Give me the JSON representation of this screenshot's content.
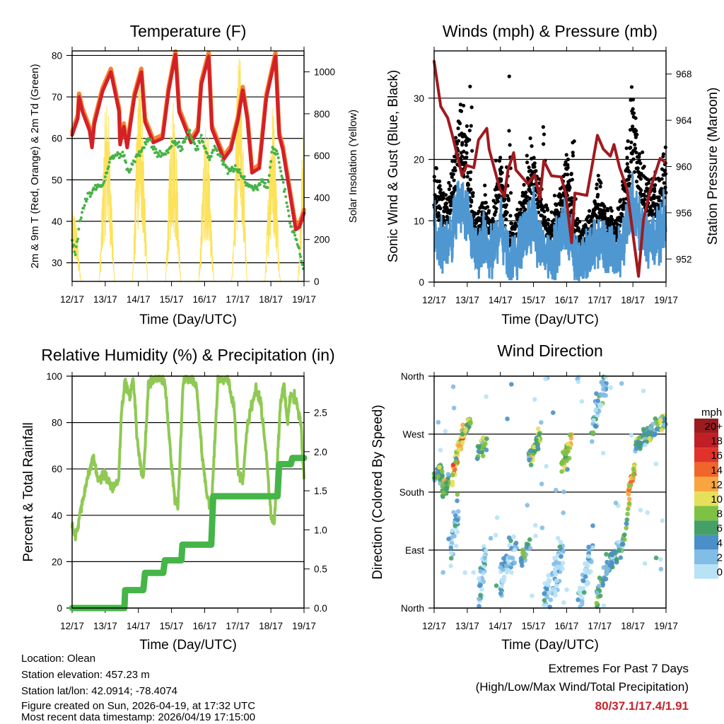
{
  "colors": {
    "temp_red": "#d42027",
    "temp_orange": "#f58231",
    "dewpoint": "#47b347",
    "solar": "#fde25a",
    "wind": "#4f97d1",
    "gust": "#000000",
    "pressure": "#a01a1f",
    "rh": "#8fc953",
    "precip": "#46b549",
    "extremes": "#c9222b"
  },
  "chart_data": [
    {
      "type": "line",
      "title": "Temperature (F)",
      "xlabel": "Time (Day/UTC)",
      "ylabel": "2m & 9m T (Red, Orange) & 2m Td (Green)",
      "ylabel_right": "Solar Insolation (Yellow)",
      "x_ticks": [
        "12/17",
        "13/17",
        "14/17",
        "15/17",
        "16/17",
        "17/17",
        "18/17",
        "19/17"
      ],
      "ylim": [
        25.5,
        81.1
      ],
      "y_ticks": [
        30,
        40,
        50,
        60,
        70,
        80
      ],
      "y_tick_labels": [
        "30",
        "40",
        "50",
        "60",
        "70",
        "80"
      ],
      "ylim_right": [
        0,
        1100
      ],
      "y_ticks_right": [
        0,
        200,
        400,
        600,
        800,
        1000
      ],
      "y_tick_labels_right": [
        "0",
        "200",
        "400",
        "600",
        "800",
        "1000"
      ],
      "series": [
        {
          "name": "2m T",
          "x": [
            0,
            0.17,
            0.21,
            0.31,
            0.53,
            0.6,
            0.67,
            0.92,
            1.17,
            1.42,
            1.45,
            1.56,
            1.66,
            1.88,
            2.09,
            2.2,
            2.45,
            2.73,
            2.91,
            3.12,
            3.23,
            3.59,
            3.8,
            3.9,
            4.12,
            4.22,
            4.58,
            4.79,
            5.01,
            5.15,
            5.29,
            5.43,
            5.65,
            5.86,
            6.14,
            6.25,
            6.36,
            6.75,
            6.86,
            7.0
          ],
          "y": [
            60.8,
            64.8,
            70,
            66.5,
            61.8,
            57.8,
            63.5,
            71.4,
            76,
            66.4,
            58.5,
            62.8,
            57.8,
            70,
            76,
            64,
            59,
            60,
            71.4,
            80.2,
            66.4,
            59,
            61.8,
            73,
            79.8,
            62.3,
            55,
            57.3,
            64.6,
            71.6,
            64.6,
            51.7,
            52.8,
            69.7,
            79.8,
            60.6,
            57.3,
            38,
            38.6,
            42
          ]
        },
        {
          "name": "9m T",
          "offset": 0.8
        },
        {
          "name": "2m Td",
          "x": [
            0,
            0.1,
            0.25,
            0.4,
            0.7,
            0.95,
            1.15,
            1.35,
            1.55,
            1.7,
            1.9,
            2.1,
            2.3,
            2.5,
            2.7,
            2.9,
            3.05,
            3.3,
            3.55,
            3.75,
            3.9,
            4.15,
            4.3,
            4.5,
            4.7,
            4.9,
            5.1,
            5.35,
            5.55,
            5.75,
            5.9,
            6.05,
            6.2,
            6.4,
            6.6,
            6.8,
            6.95,
            7.0
          ],
          "y": [
            35,
            32,
            41,
            45,
            48,
            49,
            55,
            56,
            56,
            52,
            55,
            57,
            60,
            57,
            56,
            57,
            59,
            58,
            62,
            57,
            60,
            55,
            58,
            55,
            52,
            53,
            51,
            48.5,
            48,
            50,
            48,
            58,
            56,
            48,
            39,
            35,
            30,
            26
          ]
        },
        {
          "name": "Solar",
          "daily_peak_day": [
            0,
            1,
            2,
            3,
            4,
            5,
            6,
            7
          ],
          "daily_peak": [
            350,
            890,
            1025,
            910,
            780,
            1100,
            870,
            940
          ]
        }
      ]
    },
    {
      "type": "scatter",
      "title": "Winds (mph) & Pressure (mb)",
      "xlabel": "Time (Day/UTC)",
      "ylabel": "Sonic Wind & Gust (Blue, Black)",
      "ylabel_right": "Station Pressure (Maroon)",
      "x_ticks": [
        "12/17",
        "13/17",
        "14/17",
        "15/17",
        "16/17",
        "17/17",
        "18/17",
        "19/17"
      ],
      "ylim": [
        0,
        37.7
      ],
      "y_ticks": [
        0,
        10,
        20,
        30
      ],
      "y_tick_labels": [
        "0",
        "10",
        "20",
        "30"
      ],
      "ylim_right": [
        950,
        970
      ],
      "y_ticks_right": [
        952,
        956,
        960,
        964,
        968
      ],
      "y_tick_labels_right": [
        "952",
        "956",
        "960",
        "964",
        "968"
      ],
      "series": [
        {
          "name": "Sonic Wind",
          "x": [
            0,
            0.25,
            0.5,
            0.75,
            1,
            1.25,
            1.5,
            1.75,
            2,
            2.25,
            2.5,
            2.75,
            3,
            3.25,
            3.5,
            3.75,
            4,
            4.25,
            4.5,
            4.75,
            5,
            5.25,
            5.5,
            5.75,
            6,
            6.25,
            6.5,
            6.75,
            7
          ],
          "y": [
            8,
            5.5,
            7,
            13,
            11,
            4,
            6,
            4,
            10,
            3,
            5,
            8,
            10,
            6,
            4,
            6,
            10,
            4,
            3.5,
            5,
            7,
            5,
            4,
            8,
            13,
            9,
            7,
            7,
            10
          ]
        },
        {
          "name": "Gust",
          "peaks_x": [
            1.1,
            1.9,
            2.25,
            3.3,
            4.2,
            6.0
          ],
          "peaks_y": [
            33,
            28,
            35.5,
            28.5,
            26,
            34.6
          ]
        },
        {
          "name": "Pressure",
          "x": [
            0,
            0.2,
            0.41,
            0.55,
            0.77,
            0.84,
            0.98,
            1.2,
            1.34,
            1.59,
            1.66,
            1.98,
            2.12,
            2.23,
            2.4,
            2.47,
            2.83,
            3.04,
            3.19,
            3.31,
            3.54,
            3.83,
            3.97,
            4.15,
            4.25,
            4.61,
            4.93,
            5.11,
            5.32,
            5.43,
            5.6,
            5.82,
            5.99,
            6.17,
            6.32,
            6.53,
            6.82,
            7.0
          ],
          "y": [
            969.1,
            965.2,
            964.2,
            962.7,
            960.1,
            959.2,
            960.1,
            959.9,
            962.3,
            963.3,
            961.5,
            958.1,
            957.4,
            959.7,
            961.2,
            959.7,
            958.5,
            959.3,
            957.2,
            960.5,
            959.2,
            959.1,
            957.7,
            953.4,
            957.7,
            957.5,
            962.7,
            961.5,
            960.9,
            961.9,
            959.9,
            958.1,
            954.4,
            950.5,
            955.4,
            958.1,
            960.7,
            960.3
          ]
        }
      ]
    },
    {
      "type": "line",
      "title": "Relative Humidity (%) & Precipitation (in)",
      "xlabel": "Time (Day/UTC)",
      "ylabel": "Percent & Total Rainfall",
      "x_ticks": [
        "12/17",
        "13/17",
        "14/17",
        "15/17",
        "16/17",
        "17/17",
        "18/17",
        "19/17"
      ],
      "ylim": [
        0,
        100
      ],
      "y_ticks": [
        0,
        20,
        40,
        60,
        80,
        100
      ],
      "y_tick_labels": [
        "0",
        "20",
        "40",
        "60",
        "80",
        "100"
      ],
      "ylim_right": [
        0,
        2.966
      ],
      "y_ticks_right": [
        0,
        0.5,
        1,
        1.5,
        2,
        2.5
      ],
      "y_tick_labels_right": [
        "0.0",
        "0.5",
        "1.0",
        "1.5",
        "2.0",
        "2.5"
      ],
      "series": [
        {
          "name": "RH",
          "x": [
            0,
            0.1,
            0.3,
            0.5,
            0.65,
            0.8,
            1,
            1.2,
            1.4,
            1.5,
            1.6,
            1.75,
            1.85,
            1.95,
            2.05,
            2.15,
            2.3,
            2.45,
            2.65,
            2.8,
            2.95,
            3.1,
            3.2,
            3.35,
            3.55,
            3.75,
            3.9,
            4.05,
            4.2,
            4.4,
            4.7,
            4.9,
            5.0,
            5.15,
            5.3,
            5.55,
            5.7,
            5.9,
            6.0,
            6.1,
            6.2,
            6.3,
            6.4,
            6.5,
            6.6,
            6.75,
            6.9,
            7.0
          ],
          "y": [
            36,
            30,
            45,
            58,
            65,
            55,
            58,
            52,
            55,
            86,
            98,
            92,
            99,
            75,
            62,
            56,
            95,
            99,
            99,
            97,
            70,
            47,
            45,
            98,
            99,
            96,
            70,
            50,
            42,
            98,
            99,
            85,
            60,
            55,
            80,
            95,
            88,
            60,
            40,
            36,
            65,
            90,
            95,
            80,
            93,
            90,
            80,
            55
          ]
        },
        {
          "name": "Total Precip",
          "x": [
            0,
            1.58,
            1.6,
            2.15,
            2.17,
            2.2,
            2.75,
            2.8,
            3.3,
            3.33,
            4.2,
            4.26,
            6.2,
            6.25,
            6.6,
            6.65,
            7.0
          ],
          "y": [
            0,
            0,
            0.23,
            0.23,
            0.32,
            0.45,
            0.45,
            0.61,
            0.61,
            0.81,
            0.81,
            1.43,
            1.43,
            1.84,
            1.84,
            1.92,
            1.92
          ]
        }
      ]
    },
    {
      "type": "scatter",
      "title": "Wind Direction",
      "xlabel": "Time (Day/UTC)",
      "ylabel": "Direction (Colored By Speed)",
      "x_ticks": [
        "12/17",
        "13/17",
        "14/17",
        "15/17",
        "16/17",
        "17/17",
        "18/17",
        "19/17"
      ],
      "ylim": [
        0,
        360
      ],
      "y_ticks": [
        0,
        90,
        180,
        270,
        360
      ],
      "y_tick_labels": [
        "North",
        "East",
        "South",
        "West",
        "North"
      ],
      "legend": {
        "title": "mph",
        "labels": [
          "20+",
          "18",
          "16",
          "14",
          "12",
          "10",
          "8",
          "6",
          "4",
          "2",
          "0"
        ],
        "colors": [
          "#9b1b1e",
          "#c01f26",
          "#e0322b",
          "#f0652a",
          "#f8a540",
          "#e6df5a",
          "#7ec143",
          "#45a068",
          "#4a8fc8",
          "#82bde8",
          "#b8e2f6"
        ]
      },
      "clusters": [
        {
          "day": [
            0,
            0.25
          ],
          "dir": [
            200,
            215
          ],
          "spread": 15,
          "speed": 7,
          "n": 40
        },
        {
          "day": [
            0.25,
            0.45
          ],
          "dir": [
            180,
            195
          ],
          "spread": 15,
          "speed": 8,
          "n": 30
        },
        {
          "day": [
            0.55,
            0.9
          ],
          "dir": [
            205,
            275
          ],
          "spread": 14,
          "speed": 12,
          "n": 60
        },
        {
          "day": [
            0.85,
            1.1
          ],
          "dir": [
            265,
            290
          ],
          "spread": 12,
          "speed": 9,
          "n": 30
        },
        {
          "day": [
            0.5,
            0.75
          ],
          "dir": [
            90,
            150
          ],
          "spread": 30,
          "speed": 3,
          "n": 30
        },
        {
          "day": [
            1.3,
            1.6
          ],
          "dir": [
            240,
            260
          ],
          "spread": 14,
          "speed": 8,
          "n": 28
        },
        {
          "day": [
            1.35,
            1.55
          ],
          "dir": [
            20,
            80
          ],
          "spread": 30,
          "speed": 2.5,
          "n": 35
        },
        {
          "day": [
            2.0,
            2.5
          ],
          "dir": [
            40,
            110
          ],
          "spread": 30,
          "speed": 3,
          "n": 55
        },
        {
          "day": [
            2.85,
            3.2
          ],
          "dir": [
            230,
            265
          ],
          "spread": 16,
          "speed": 8.5,
          "n": 45
        },
        {
          "day": [
            2.6,
            2.9
          ],
          "dir": [
            70,
            100
          ],
          "spread": 12,
          "speed": 6,
          "n": 22
        },
        {
          "day": [
            3.3,
            3.9
          ],
          "dir": [
            10,
            90
          ],
          "spread": 30,
          "speed": 2.5,
          "n": 70
        },
        {
          "day": [
            3.85,
            4.15
          ],
          "dir": [
            220,
            260
          ],
          "spread": 18,
          "speed": 10,
          "n": 40
        },
        {
          "day": [
            4.3,
            4.8
          ],
          "dir": [
            0,
            90
          ],
          "spread": 30,
          "speed": 2,
          "n": 50
        },
        {
          "day": [
            4.75,
            5.2
          ],
          "dir": [
            280,
            360
          ],
          "spread": 25,
          "speed": 4,
          "n": 50
        },
        {
          "day": [
            4.9,
            5.2
          ],
          "dir": [
            10,
            70
          ],
          "spread": 20,
          "speed": 6,
          "n": 22
        },
        {
          "day": [
            5.2,
            5.7
          ],
          "dir": [
            60,
            100
          ],
          "spread": 15,
          "speed": 4.5,
          "n": 55
        },
        {
          "day": [
            5.7,
            5.9
          ],
          "dir": [
            100,
            170
          ],
          "spread": 10,
          "speed": 7.5,
          "n": 15
        },
        {
          "day": [
            5.85,
            6.05
          ],
          "dir": [
            180,
            215
          ],
          "spread": 10,
          "speed": 13,
          "n": 35
        },
        {
          "day": [
            6.05,
            7.0
          ],
          "dir": [
            255,
            290
          ],
          "spread": 14,
          "speed": 7,
          "n": 90
        },
        {
          "day": [
            0,
            7
          ],
          "dir": [
            0,
            360
          ],
          "spread": 0,
          "speed": 2,
          "n": 60
        }
      ]
    }
  ],
  "footer": {
    "location": "Location: Olean",
    "elevation": "Station elevation: 457.23 m",
    "latlon": "Station lat/lon: 42.0914; -78.4074",
    "created": "Figure created on Sun, 2026-04-19, at 17:32 UTC",
    "recent": "Most recent data timestamp: 2026/04/19 17:15:00",
    "extremes_title": "Extremes For Past 7 Days",
    "extremes_sub": "(High/Low/Max Wind/Total Precipitation)",
    "extremes_values": "80/37.1/17.4/1.91"
  }
}
